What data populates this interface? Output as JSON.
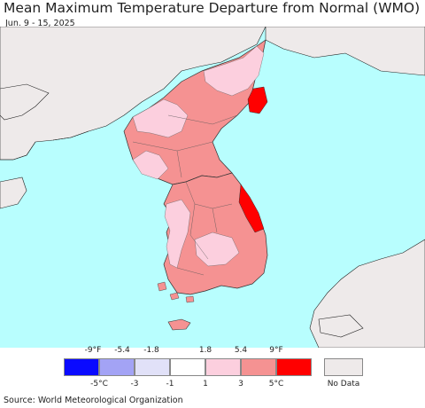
{
  "title": "Mean Maximum Temperature Departure from Normal (WMO)",
  "subtitle": "Jun. 9 - 15, 2025",
  "legend": {
    "fahrenheit_labels": [
      "-9°F",
      "-5.4",
      "-1.8",
      "1.8",
      "5.4",
      "9°F"
    ],
    "celsius_labels": [
      "-5°C",
      "-3",
      "-1",
      "1",
      "3",
      "5°C"
    ],
    "colors": [
      "#0a0aff",
      "#a3a3f5",
      "#e1e1f8",
      "#ffffff",
      "#fccfde",
      "#f59292",
      "#ff0000"
    ],
    "no_data_label": "No Data",
    "no_data_color": "#eeeaea"
  },
  "colors": {
    "ocean": "#b8fefe",
    "land_no_data": "#eeeaea",
    "light_pink": "#fccfde",
    "salmon": "#f59292",
    "red": "#ff0000"
  },
  "source": "Source: World Meteorological Organization"
}
